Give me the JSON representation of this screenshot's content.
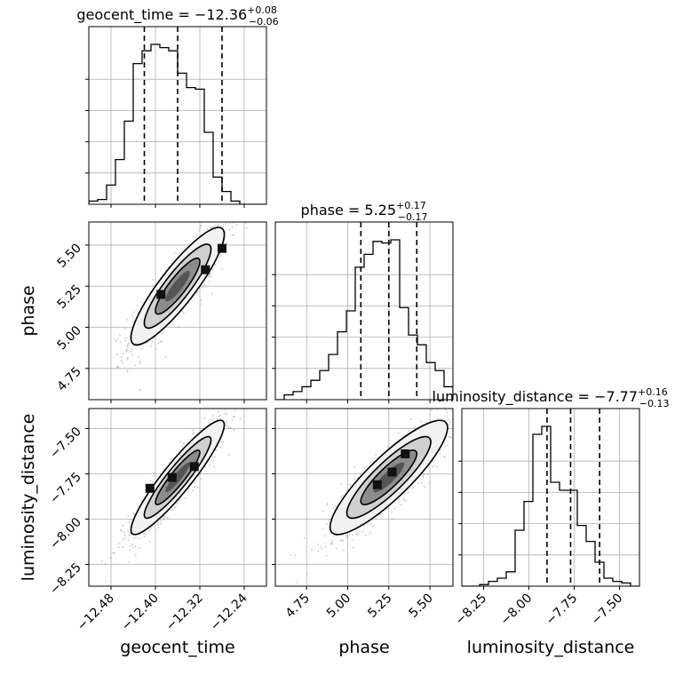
{
  "chart_data": {
    "type": "corner",
    "grid": true,
    "parameters": [
      {
        "name": "geocent_time",
        "axis_label": "geocent_time",
        "title": {
          "prefix": "geocent_time = ",
          "value": "−12.36",
          "upper": "+0.08",
          "lower": "−0.06"
        },
        "range": [
          -12.52,
          -12.2
        ],
        "ticks": [
          -12.48,
          -12.4,
          -12.32,
          -12.24
        ],
        "tick_labels": [
          "−12.48",
          "−12.40",
          "−12.32",
          "−12.24"
        ],
        "quantiles": [
          -12.42,
          -12.36,
          -12.28
        ],
        "histogram": {
          "edges_start": -12.52,
          "bin_width": 0.016,
          "counts": [
            0.02,
            0.03,
            0.12,
            0.28,
            0.52,
            0.88,
            0.96,
            1.0,
            0.98,
            0.96,
            0.82,
            0.73,
            0.72,
            0.45,
            0.17,
            0.08,
            0.02,
            0.0,
            0.0,
            0.0
          ]
        }
      },
      {
        "name": "phase",
        "axis_label": "phase",
        "title": {
          "prefix": "phase = ",
          "value": "5.25",
          "upper": "+0.17",
          "lower": "−0.17"
        },
        "range": [
          4.56,
          5.64
        ],
        "ticks": [
          4.75,
          5.0,
          5.25,
          5.5
        ],
        "tick_labels": [
          "4.75",
          "5.00",
          "5.25",
          "5.50"
        ],
        "quantiles": [
          5.08,
          5.25,
          5.42
        ],
        "histogram": {
          "edges_start": 4.56,
          "bin_width": 0.054,
          "counts": [
            0.0,
            0.03,
            0.05,
            0.08,
            0.12,
            0.18,
            0.28,
            0.42,
            0.55,
            0.82,
            0.9,
            0.98,
            0.97,
            0.99,
            0.57,
            0.4,
            0.34,
            0.23,
            0.18,
            0.08
          ]
        }
      },
      {
        "name": "luminosity_distance",
        "axis_label": "luminosity_distance",
        "title": {
          "prefix": "luminosity_distance = ",
          "value": "−7.77",
          "upper": "+0.16",
          "lower": "−0.13"
        },
        "range": [
          -8.37,
          -7.39
        ],
        "ticks": [
          -8.25,
          -8.0,
          -7.75,
          -7.5
        ],
        "tick_labels": [
          "−8.25",
          "−8.00",
          "−7.75",
          "−7.50"
        ],
        "quantiles": [
          -7.9,
          -7.77,
          -7.61
        ],
        "histogram": {
          "edges_start": -8.37,
          "bin_width": 0.049,
          "counts": [
            0.0,
            0.0,
            0.01,
            0.03,
            0.05,
            0.09,
            0.35,
            0.53,
            0.95,
            1.0,
            0.65,
            0.6,
            0.6,
            0.38,
            0.28,
            0.15,
            0.05,
            0.03,
            0.02,
            0.0
          ]
        }
      }
    ],
    "pairs": [
      {
        "x": "geocent_time",
        "y": "phase",
        "center": [
          -12.36,
          5.25
        ],
        "sigma": [
          0.04,
          0.17
        ],
        "rho": 0.88,
        "density_peaks": [
          [
            -12.39,
            5.2
          ],
          [
            -12.31,
            5.35
          ],
          [
            -12.28,
            5.48
          ]
        ]
      },
      {
        "x": "geocent_time",
        "y": "luminosity_distance",
        "center": [
          -12.36,
          -7.77
        ],
        "sigma": [
          0.04,
          0.15
        ],
        "rho": 0.92,
        "density_peaks": [
          [
            -12.41,
            -7.83
          ],
          [
            -12.37,
            -7.77
          ],
          [
            -12.33,
            -7.71
          ]
        ]
      },
      {
        "x": "phase",
        "y": "luminosity_distance",
        "center": [
          5.25,
          -7.77
        ],
        "sigma": [
          0.17,
          0.15
        ],
        "rho": 0.87,
        "density_peaks": [
          [
            5.18,
            -7.81
          ],
          [
            5.27,
            -7.74
          ],
          [
            5.35,
            -7.64
          ]
        ]
      }
    ]
  }
}
